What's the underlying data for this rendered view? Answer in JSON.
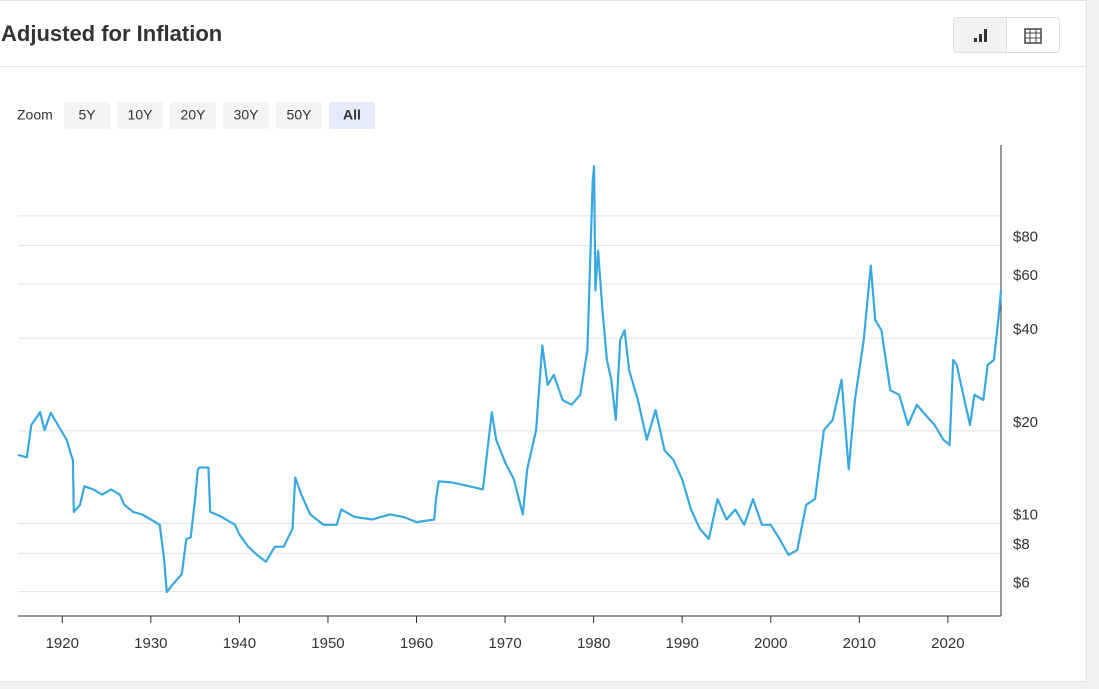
{
  "controls": {
    "zoom_label": "Zoom",
    "zoom_buttons": [
      "5Y",
      "10Y",
      "20Y",
      "30Y",
      "50Y",
      "All"
    ],
    "active": "All"
  },
  "chart_data": {
    "type": "line",
    "title": "Adjusted for Inflation",
    "log_y": true,
    "y_axis_side": "right",
    "grid": true,
    "color": "#3aa8e0",
    "xlim": [
      1915,
      2026
    ],
    "xticks": [
      1920,
      1930,
      1940,
      1950,
      1960,
      1970,
      1980,
      1990,
      2000,
      2010,
      2020
    ],
    "ylim": [
      5,
      170
    ],
    "yticks": [
      {
        "value": 6,
        "label": "$6"
      },
      {
        "value": 8,
        "label": "$8"
      },
      {
        "value": 10,
        "label": "$10"
      },
      {
        "value": 20,
        "label": "$20"
      },
      {
        "value": 40,
        "label": "$40"
      },
      {
        "value": 60,
        "label": "$60"
      },
      {
        "value": 80,
        "label": "$80"
      },
      {
        "value": 100,
        "label": null
      }
    ],
    "x": [
      1915.0,
      1916.0,
      1916.5,
      1917.5,
      1918,
      1918.7,
      1919.5,
      1920.5,
      1921,
      1921.2,
      1921.3,
      1922,
      1922.5,
      1923.5,
      1924.5,
      1925.5,
      1926.5,
      1927,
      1928,
      1929,
      1930,
      1931,
      1931.5,
      1931.8,
      1932.5,
      1933.5,
      1934,
      1934.5,
      1935,
      1935.3,
      1935.5,
      1936.5,
      1936.7,
      1938,
      1939.5,
      1940,
      1941,
      1942,
      1943,
      1944,
      1945,
      1946,
      1946.3,
      1947,
      1948,
      1949.5,
      1951,
      1951.5,
      1953,
      1955,
      1957,
      1958.5,
      1960,
      1962,
      1962.2,
      1962.5,
      1964,
      1966,
      1967.5,
      1968,
      1968.5,
      1969,
      1970,
      1971,
      1972,
      1972.5,
      1973.5,
      1974.2,
      1974.8,
      1975.5,
      1976.5,
      1977.5,
      1978.5,
      1979.3,
      1979.9,
      1980.05,
      1980.2,
      1980.5,
      1981,
      1981.5,
      1982,
      1982.5,
      1983,
      1983.5,
      1984,
      1985,
      1986,
      1987,
      1988,
      1989,
      1990,
      1991,
      1992,
      1993,
      1994,
      1995,
      1996,
      1997,
      1998,
      1999,
      2000,
      2001,
      2002,
      2003,
      2004,
      2005,
      2006,
      2007,
      2008,
      2008.8,
      2009.5,
      2010.5,
      2011.3,
      2011.8,
      2012.5,
      2013.5,
      2014.5,
      2015.5,
      2016.5,
      2017.5,
      2018.5,
      2019.5,
      2020.2,
      2020.6,
      2021,
      2021.5,
      2022.5,
      2023,
      2024,
      2024.5,
      2025.2,
      2025.7,
      2026
    ],
    "values": [
      16.7,
      16.4,
      20.9,
      23.0,
      20.1,
      22.9,
      20.9,
      18.7,
      16.7,
      16.1,
      10.9,
      11.5,
      13.2,
      12.9,
      12.4,
      12.9,
      12.4,
      11.5,
      10.9,
      10.7,
      10.3,
      9.9,
      7.64,
      5.98,
      6.35,
      6.84,
      8.9,
      9.0,
      12.0,
      14.96,
      15.2,
      15.2,
      10.9,
      10.5,
      9.9,
      9.2,
      8.4,
      7.9,
      7.5,
      8.4,
      8.4,
      9.6,
      14.1,
      12.4,
      10.7,
      9.9,
      9.9,
      11.1,
      10.5,
      10.3,
      10.7,
      10.5,
      10.1,
      10.3,
      12.0,
      13.7,
      13.6,
      13.2,
      12.9,
      17.3,
      23.0,
      18.7,
      15.8,
      13.9,
      10.7,
      15.0,
      20.1,
      37.9,
      28.2,
      30.4,
      25.2,
      24.3,
      26.2,
      36.6,
      129.7,
      145,
      57.2,
      77,
      49.3,
      34,
      29.3,
      21.7,
      39.4,
      42.5,
      31.5,
      25.2,
      18.7,
      23.4,
      17.3,
      16.1,
      13.9,
      11.1,
      9.6,
      8.9,
      12.0,
      10.3,
      11.1,
      9.9,
      12.0,
      9.9,
      9.9,
      8.9,
      7.9,
      8.2,
      11.5,
      12.0,
      20.1,
      21.7,
      29.3,
      15.0,
      25.2,
      39.4,
      68.9,
      45.9,
      42.5,
      27.1,
      26.2,
      20.9,
      24.3,
      22.5,
      20.9,
      18.7,
      18,
      34,
      32.8,
      28.2,
      20.9,
      26.2,
      25.2,
      32.8,
      34,
      45.9,
      57.2
    ]
  }
}
